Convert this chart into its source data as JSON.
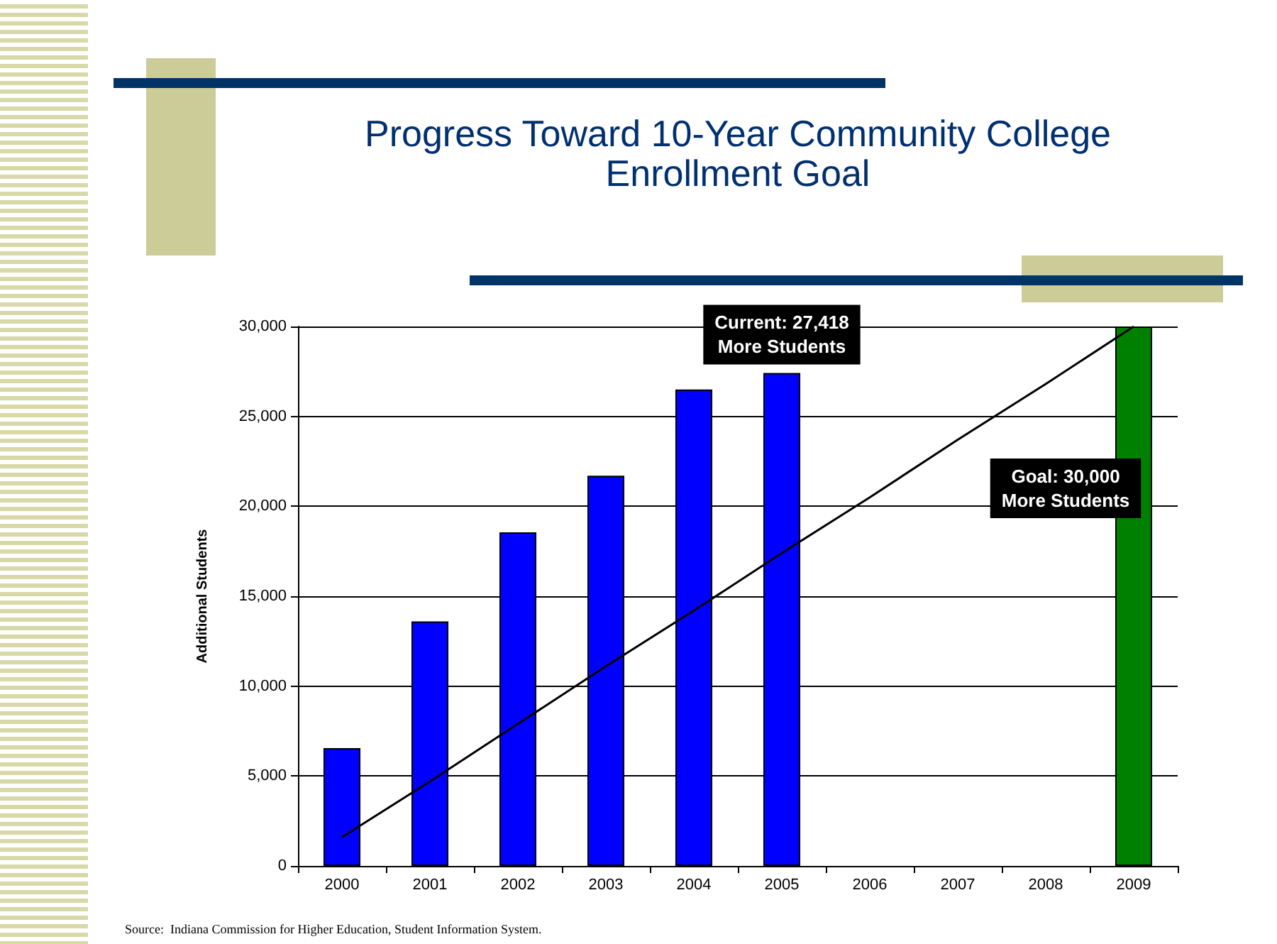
{
  "chart_data": {
    "type": "bar",
    "title": "Progress Toward 10-Year Community College\nEnrollment Goal",
    "ylabel": "Additional Students",
    "categories": [
      "2000",
      "2001",
      "2002",
      "2003",
      "2004",
      "2005",
      "2006",
      "2007",
      "2008",
      "2009"
    ],
    "series": [
      {
        "colors": [
          "#0000ff",
          "#0000ff",
          "#0000ff",
          "#0000ff",
          "#0000ff",
          "#0000ff",
          null,
          null,
          null,
          "#008000"
        ],
        "values": [
          6550,
          13600,
          18550,
          21700,
          26500,
          27418,
          null,
          null,
          null,
          30000
        ]
      },
      {
        "type": "line",
        "color": "#000000",
        "marker": "none",
        "values": [
          1600,
          4700,
          7900,
          11100,
          14200,
          17400,
          20500,
          23700,
          26800,
          30000
        ]
      }
    ],
    "ylim": [
      0,
      30000
    ],
    "yticks": [
      {
        "value": 0,
        "label": "0"
      },
      {
        "value": 5000,
        "label": "5,000"
      },
      {
        "value": 10000,
        "label": "10,000"
      },
      {
        "value": 15000,
        "label": "15,000"
      },
      {
        "value": 20000,
        "label": "20,000"
      },
      {
        "value": 25000,
        "label": "25,000"
      },
      {
        "value": 30000,
        "label": "30,000"
      }
    ],
    "grid": "y",
    "annotations": [
      {
        "text": "Current: 27,418\nMore Students",
        "x": "2005",
        "y": 27418
      },
      "Goal: 30,000\nMore Students",
      "Source:  Indiana Commission for Higher Education, Student Information System."
    ]
  }
}
